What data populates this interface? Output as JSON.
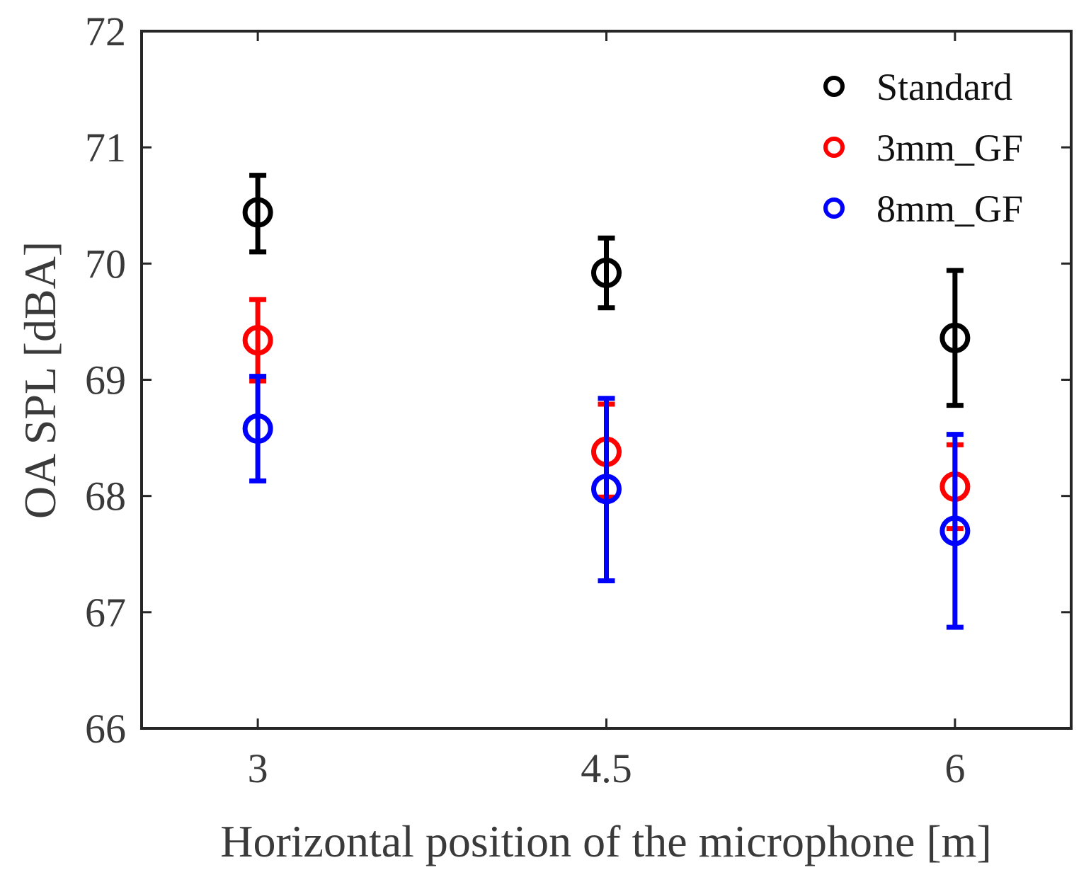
{
  "chart_data": {
    "type": "scatter",
    "title": "",
    "xlabel": "Horizontal position of the microphone [m]",
    "ylabel": "OA SPL [dBA]",
    "x": [
      3,
      4.5,
      6
    ],
    "x_tick_labels": [
      "3",
      "4.5",
      "6"
    ],
    "xlim": [
      2.5,
      6.5
    ],
    "ylim": [
      66,
      72
    ],
    "y_ticks": [
      66,
      67,
      68,
      69,
      70,
      71,
      72
    ],
    "y_tick_labels": [
      "66",
      "67",
      "68",
      "69",
      "70",
      "71",
      "72"
    ],
    "grid": false,
    "legend_position": "top-right",
    "marker": "open-circle",
    "series": [
      {
        "name": "Standard",
        "color": "#000000",
        "values": [
          70.44,
          69.92,
          69.36
        ],
        "err_low": [
          70.1,
          69.62,
          68.78
        ],
        "err_high": [
          70.76,
          70.22,
          69.94
        ]
      },
      {
        "name": "3mm_GF",
        "color": "#ff0000",
        "values": [
          69.34,
          68.38,
          68.08
        ],
        "err_low": [
          68.99,
          67.99,
          67.72
        ],
        "err_high": [
          69.69,
          68.79,
          68.44
        ]
      },
      {
        "name": "8mm_GF",
        "color": "#0000ff",
        "values": [
          68.58,
          68.06,
          67.7
        ],
        "err_low": [
          68.13,
          67.27,
          66.87
        ],
        "err_high": [
          69.03,
          68.84,
          68.53
        ]
      }
    ]
  }
}
